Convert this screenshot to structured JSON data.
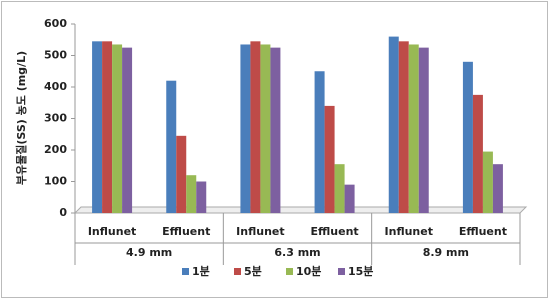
{
  "chart_data": {
    "type": "bar",
    "y_label": "부유물질(SS) 농도 (mg/L)",
    "categories": [
      "Influnet",
      "Effluent",
      "Influnet",
      "Effluent",
      "Influnet",
      "Effluent"
    ],
    "groups": [
      "4.9 mm",
      "6.3 mm",
      "8.9 mm"
    ],
    "series": [
      {
        "name": "1분",
        "color": "#4a7ebb",
        "values": [
          545,
          420,
          535,
          450,
          560,
          480
        ]
      },
      {
        "name": "5분",
        "color": "#be4b48",
        "values": [
          545,
          245,
          545,
          340,
          545,
          375
        ]
      },
      {
        "name": "10분",
        "color": "#98b954",
        "values": [
          535,
          120,
          535,
          155,
          535,
          195
        ]
      },
      {
        "name": "15분",
        "color": "#7d60a0",
        "values": [
          525,
          100,
          525,
          90,
          525,
          155
        ]
      }
    ],
    "ylim": [
      0,
      600
    ],
    "yticks": [
      0,
      100,
      200,
      300,
      400,
      500,
      600
    ],
    "grid": false,
    "legend": "bottom"
  }
}
